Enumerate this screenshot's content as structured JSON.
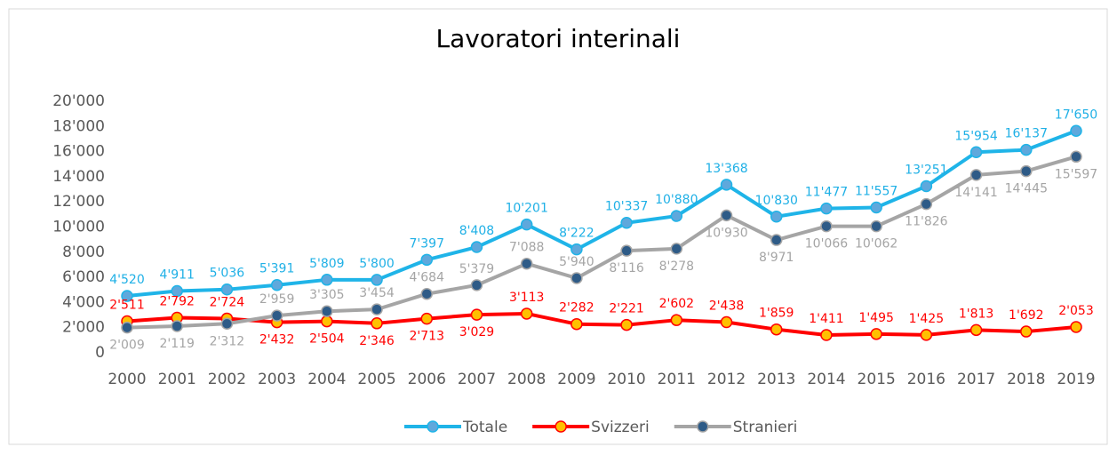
{
  "chart_data": {
    "type": "line",
    "title": "Lavoratori interinali",
    "categories": [
      "2000",
      "2001",
      "2002",
      "2003",
      "2004",
      "2005",
      "2006",
      "2007",
      "2008",
      "2009",
      "2010",
      "2011",
      "2012",
      "2013",
      "2014",
      "2015",
      "2016",
      "2017",
      "2018",
      "2019"
    ],
    "ylim": [
      0,
      20000
    ],
    "yticks": [
      0,
      {
        "value": 2000,
        "label": "2'000"
      },
      {
        "value": 4000,
        "label": "4'000"
      },
      {
        "value": 6000,
        "label": "6'000"
      },
      {
        "value": 8000,
        "label": "8'000"
      },
      {
        "value": 10000,
        "label": "10'000"
      },
      {
        "value": 12000,
        "label": "12'000"
      },
      {
        "value": 14000,
        "label": "14'000"
      },
      {
        "value": 16000,
        "label": "16'000"
      },
      {
        "value": 18000,
        "label": "18'000"
      },
      {
        "value": 20000,
        "label": "20'000"
      }
    ],
    "legend": "bottom",
    "series": [
      {
        "name": "Totale",
        "color": "#1fb4e8",
        "marker_color": "#5fa8dc",
        "label_color": "#1fb0e6",
        "values": [
          4520,
          4911,
          5036,
          5391,
          5809,
          5800,
          7397,
          8408,
          10201,
          8222,
          10337,
          10880,
          13368,
          10830,
          11477,
          11557,
          13251,
          15954,
          16137,
          17650
        ],
        "value_labels": [
          "4'520",
          "4'911",
          "5'036",
          "5'391",
          "5'809",
          "5'800",
          "7'397",
          "8'408",
          "10'201",
          "8'222",
          "10'337",
          "10'880",
          "13'368",
          "10'830",
          "11'477",
          "11'557",
          "13'251",
          "15'954",
          "16'137",
          "17'650"
        ]
      },
      {
        "name": "Svizzeri",
        "color": "#ff0000",
        "marker_color": "#ffc000",
        "label_color": "#ff0000",
        "values": [
          2511,
          2792,
          2724,
          2432,
          2504,
          2346,
          2713,
          3029,
          3113,
          2282,
          2221,
          2602,
          2438,
          1859,
          1411,
          1495,
          1425,
          1813,
          1692,
          2053
        ],
        "value_labels": [
          "2'511",
          "2'792",
          "2'724",
          "2'432",
          "2'504",
          "2'346",
          "2'713",
          "3'029",
          "3'113",
          "2'282",
          "2'221",
          "2'602",
          "2'438",
          "1'859",
          "1'411",
          "1'495",
          "1'425",
          "1'813",
          "1'692",
          "2'053"
        ]
      },
      {
        "name": "Stranieri",
        "color": "#a5a5a5",
        "marker_color": "#2e5b87",
        "label_color": "#a5a5a5",
        "values": [
          2009,
          2119,
          2312,
          2959,
          3305,
          3454,
          4684,
          5379,
          7088,
          5940,
          8116,
          8278,
          10930,
          8971,
          10066,
          10062,
          11826,
          14141,
          14445,
          15597
        ],
        "value_labels": [
          "2'009",
          "2'119",
          "2'312",
          "2'959",
          "3'305",
          "3'454",
          "4'684",
          "5'379",
          "7'088",
          "5'940",
          "8'116",
          "8'278",
          "10'930",
          "8'971",
          "10'066",
          "10'062",
          "11'826",
          "14'141",
          "14'445",
          "15'597"
        ]
      }
    ]
  }
}
